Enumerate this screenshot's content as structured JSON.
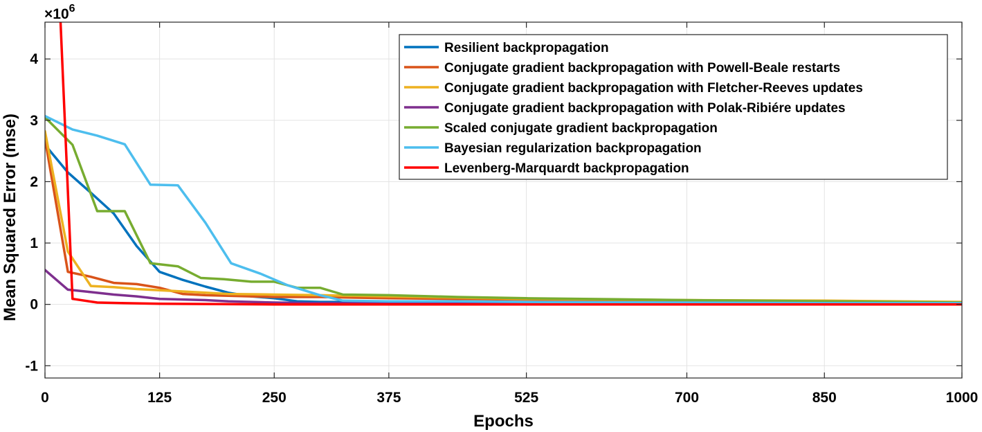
{
  "chart_data": {
    "type": "line",
    "title": "",
    "xlabel": "Epochs",
    "ylabel": "Mean Squared Error  (mse)",
    "y_exponent_label": "×10",
    "y_exponent_power": "6",
    "y_scale_factor": 1000000,
    "xlim": [
      0,
      1000
    ],
    "ylim": [
      -1.2,
      4.6
    ],
    "x_ticks": [
      0,
      125,
      250,
      375,
      525,
      700,
      850,
      1000
    ],
    "y_ticks": [
      -1,
      0,
      1,
      2,
      3,
      4
    ],
    "grid": true,
    "legend_position": "top-right",
    "series": [
      {
        "name": "Resilient backpropagation",
        "color": "#0072BD",
        "points": [
          [
            0,
            2.6
          ],
          [
            25,
            2.15
          ],
          [
            50,
            1.82
          ],
          [
            75,
            1.48
          ],
          [
            100,
            0.95
          ],
          [
            125,
            0.53
          ],
          [
            150,
            0.4
          ],
          [
            175,
            0.29
          ],
          [
            200,
            0.19
          ],
          [
            225,
            0.13
          ],
          [
            250,
            0.1
          ],
          [
            275,
            0.05
          ],
          [
            300,
            0.04
          ],
          [
            375,
            0.04
          ],
          [
            450,
            0.03
          ],
          [
            525,
            0.03
          ],
          [
            700,
            0.02
          ],
          [
            850,
            0.01
          ],
          [
            1000,
            0.01
          ]
        ]
      },
      {
        "name": "Conjugate gradient backpropagation with Powell-Beale restarts",
        "color": "#D95319",
        "points": [
          [
            0,
            2.7
          ],
          [
            25,
            0.53
          ],
          [
            50,
            0.45
          ],
          [
            75,
            0.35
          ],
          [
            100,
            0.33
          ],
          [
            125,
            0.27
          ],
          [
            150,
            0.17
          ],
          [
            175,
            0.15
          ],
          [
            200,
            0.14
          ],
          [
            225,
            0.13
          ],
          [
            250,
            0.12
          ],
          [
            300,
            0.12
          ],
          [
            375,
            0.1
          ],
          [
            450,
            0.09
          ],
          [
            525,
            0.08
          ],
          [
            700,
            0.06
          ],
          [
            850,
            0.04
          ],
          [
            1000,
            0.03
          ]
        ]
      },
      {
        "name": "Conjugate gradient backpropagation with Fletcher-Reeves updates",
        "color": "#EDB120",
        "points": [
          [
            0,
            2.82
          ],
          [
            25,
            0.86
          ],
          [
            50,
            0.3
          ],
          [
            75,
            0.28
          ],
          [
            100,
            0.25
          ],
          [
            125,
            0.23
          ],
          [
            150,
            0.21
          ],
          [
            175,
            0.19
          ],
          [
            200,
            0.17
          ],
          [
            250,
            0.16
          ],
          [
            300,
            0.15
          ],
          [
            375,
            0.13
          ],
          [
            450,
            0.11
          ],
          [
            525,
            0.09
          ],
          [
            700,
            0.07
          ],
          [
            850,
            0.06
          ],
          [
            1000,
            0.04
          ]
        ]
      },
      {
        "name": "Conjugate gradient backpropagation with Polak-Ribiére updates",
        "color": "#7E2F8E",
        "points": [
          [
            0,
            0.56
          ],
          [
            25,
            0.24
          ],
          [
            50,
            0.2
          ],
          [
            75,
            0.16
          ],
          [
            100,
            0.13
          ],
          [
            125,
            0.09
          ],
          [
            150,
            0.08
          ],
          [
            175,
            0.07
          ],
          [
            200,
            0.05
          ],
          [
            250,
            0.03
          ],
          [
            300,
            0.02
          ],
          [
            375,
            0.02
          ],
          [
            525,
            0.01
          ],
          [
            700,
            0.01
          ],
          [
            1000,
            0.0
          ]
        ]
      },
      {
        "name": "Scaled conjugate gradient backpropagation",
        "color": "#77AC30",
        "points": [
          [
            0,
            3.05
          ],
          [
            30,
            2.6
          ],
          [
            57,
            1.52
          ],
          [
            87,
            1.52
          ],
          [
            115,
            0.67
          ],
          [
            145,
            0.62
          ],
          [
            170,
            0.43
          ],
          [
            195,
            0.41
          ],
          [
            225,
            0.37
          ],
          [
            250,
            0.37
          ],
          [
            275,
            0.27
          ],
          [
            300,
            0.27
          ],
          [
            325,
            0.16
          ],
          [
            375,
            0.15
          ],
          [
            450,
            0.12
          ],
          [
            525,
            0.1
          ],
          [
            700,
            0.07
          ],
          [
            850,
            0.05
          ],
          [
            1000,
            0.03
          ]
        ]
      },
      {
        "name": "Bayesian regularization backpropagation",
        "color": "#4DBEEE",
        "points": [
          [
            0,
            3.07
          ],
          [
            30,
            2.85
          ],
          [
            57,
            2.75
          ],
          [
            87,
            2.61
          ],
          [
            115,
            1.95
          ],
          [
            145,
            1.94
          ],
          [
            175,
            1.33
          ],
          [
            203,
            0.67
          ],
          [
            235,
            0.5
          ],
          [
            265,
            0.31
          ],
          [
            300,
            0.15
          ],
          [
            325,
            0.06
          ],
          [
            375,
            0.05
          ],
          [
            450,
            0.05
          ],
          [
            525,
            0.04
          ],
          [
            700,
            0.03
          ],
          [
            850,
            0.02
          ],
          [
            1000,
            0.02
          ]
        ]
      },
      {
        "name": "Levenberg-Marquardt backpropagation",
        "color": "#FF0000",
        "points": [
          [
            17,
            4.6
          ],
          [
            30,
            0.09
          ],
          [
            57,
            0.03
          ],
          [
            87,
            0.02
          ],
          [
            125,
            0.01
          ],
          [
            250,
            0.0
          ],
          [
            1000,
            0.0
          ]
        ]
      }
    ]
  }
}
